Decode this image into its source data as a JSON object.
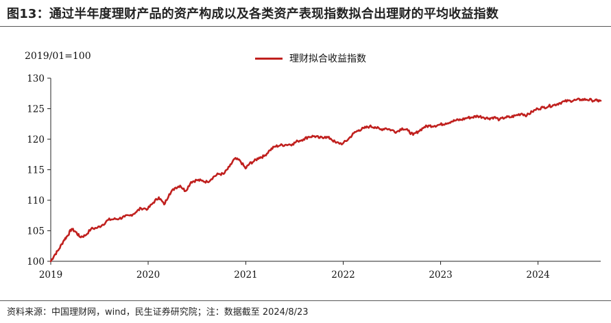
{
  "figure": {
    "title": "图13：通过半年度理财产品的资产构成以及各类资产表现指数拟合出理财的平均收益指数",
    "source": "资料来源：中国理财网，wind，民生证券研究院；注：数据截至 2024/8/23"
  },
  "chart_data": {
    "type": "line",
    "title": "",
    "subtitle": "2019/01=100",
    "xlabel": "",
    "ylabel": "",
    "x_range": [
      "2019-01-01",
      "2024-08-23"
    ],
    "ylim": [
      100,
      130
    ],
    "x_ticks": [
      "2019",
      "2020",
      "2021",
      "2022",
      "2023",
      "2024"
    ],
    "y_ticks": [
      "100",
      "105",
      "110",
      "115",
      "120",
      "125",
      "130"
    ],
    "grid": false,
    "legend": "top-center",
    "colors": {
      "series": "#c0201e"
    },
    "series": [
      {
        "name": "理财拟合收益指数",
        "x": [
          "2019-01-01",
          "2019-01-15",
          "2019-02-01",
          "2019-02-20",
          "2019-03-05",
          "2019-03-20",
          "2019-04-05",
          "2019-04-20",
          "2019-05-10",
          "2019-06-01",
          "2019-06-25",
          "2019-07-15",
          "2019-08-05",
          "2019-08-25",
          "2019-09-15",
          "2019-10-05",
          "2019-10-25",
          "2019-11-15",
          "2019-12-05",
          "2019-12-31",
          "2020-01-20",
          "2020-02-10",
          "2020-03-01",
          "2020-03-20",
          "2020-04-10",
          "2020-04-30",
          "2020-05-20",
          "2020-06-10",
          "2020-07-01",
          "2020-07-20",
          "2020-08-10",
          "2020-09-01",
          "2020-09-20",
          "2020-10-10",
          "2020-11-01",
          "2020-11-20",
          "2020-12-10",
          "2020-12-31",
          "2021-01-15",
          "2021-02-01",
          "2021-02-20",
          "2021-03-10",
          "2021-04-01",
          "2021-04-20",
          "2021-05-10",
          "2021-06-01",
          "2021-06-25",
          "2021-07-15",
          "2021-08-05",
          "2021-08-25",
          "2021-09-15",
          "2021-10-05",
          "2021-10-25",
          "2021-11-15",
          "2021-12-05",
          "2021-12-31",
          "2022-01-20",
          "2022-02-10",
          "2022-03-01",
          "2022-03-20",
          "2022-04-10",
          "2022-04-30",
          "2022-05-20",
          "2022-06-10",
          "2022-07-01",
          "2022-07-20",
          "2022-08-10",
          "2022-09-01",
          "2022-09-20",
          "2022-10-10",
          "2022-11-01",
          "2022-11-20",
          "2022-12-10",
          "2022-12-31",
          "2023-01-20",
          "2023-02-10",
          "2023-03-01",
          "2023-03-20",
          "2023-04-10",
          "2023-05-01",
          "2023-05-20",
          "2023-06-10",
          "2023-07-01",
          "2023-07-20",
          "2023-08-10",
          "2023-09-01",
          "2023-09-20",
          "2023-10-10",
          "2023-11-01",
          "2023-11-20",
          "2023-12-10",
          "2023-12-31",
          "2024-01-20",
          "2024-02-10",
          "2024-03-01",
          "2024-03-20",
          "2024-04-10",
          "2024-05-01",
          "2024-05-20",
          "2024-06-10",
          "2024-07-01",
          "2024-07-20",
          "2024-08-10",
          "2024-08-23"
        ],
        "values": [
          100.0,
          101.0,
          102.0,
          103.5,
          104.2,
          105.3,
          104.8,
          104.0,
          104.2,
          105.3,
          105.5,
          106.0,
          106.8,
          106.9,
          107.0,
          107.3,
          107.5,
          108.0,
          108.7,
          108.6,
          109.6,
          110.5,
          109.3,
          111.0,
          112.0,
          112.4,
          111.5,
          113.0,
          113.3,
          113.2,
          113.0,
          113.8,
          114.3,
          114.3,
          115.5,
          116.8,
          116.5,
          115.2,
          116.0,
          116.4,
          117.0,
          117.2,
          118.2,
          118.8,
          119.0,
          119.1,
          119.2,
          119.7,
          120.0,
          120.4,
          120.5,
          120.2,
          120.4,
          120.1,
          119.4,
          119.3,
          120.0,
          121.0,
          121.5,
          121.8,
          122.1,
          122.0,
          121.6,
          121.8,
          121.5,
          121.2,
          121.8,
          121.4,
          120.7,
          121.3,
          122.0,
          122.2,
          122.2,
          122.4,
          122.6,
          122.9,
          123.1,
          123.2,
          123.5,
          123.6,
          123.8,
          123.6,
          123.4,
          123.6,
          123.2,
          123.6,
          123.6,
          123.9,
          124.2,
          123.9,
          124.5,
          125.0,
          125.2,
          125.4,
          125.6,
          125.9,
          126.2,
          126.3,
          126.4,
          126.5,
          126.5,
          126.4,
          126.3,
          126.3
        ]
      }
    ]
  }
}
